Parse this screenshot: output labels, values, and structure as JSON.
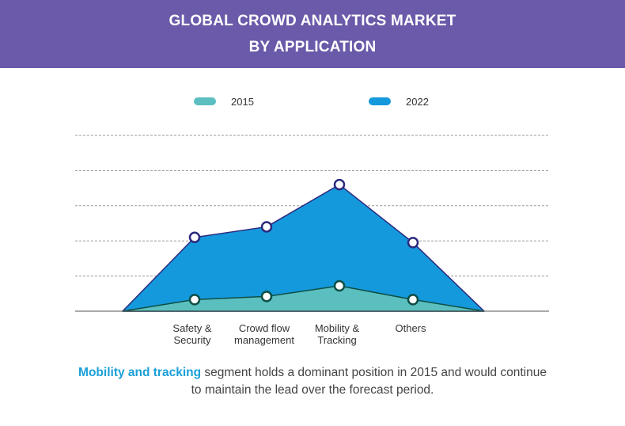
{
  "header": {
    "title_line1": "GLOBAL CROWD ANALYTICS MARKET",
    "title_line2": "BY APPLICATION"
  },
  "chart_data": {
    "type": "area",
    "categories": [
      [
        "Safety &",
        "Security"
      ],
      [
        "Crowd flow",
        "management"
      ],
      [
        "Mobility &",
        "Tracking"
      ],
      [
        "Others"
      ]
    ],
    "series": [
      {
        "name": "2022",
        "values": [
          2.1,
          2.4,
          3.6,
          1.95
        ],
        "color": "#1499dc",
        "marker_color": "#2c2a7e"
      },
      {
        "name": "2015",
        "values": [
          0.33,
          0.42,
          0.72,
          0.33
        ],
        "color": "#5bbfc0",
        "marker_color": "#0d4f45"
      }
    ],
    "ylim": [
      0,
      5
    ],
    "grid": true,
    "legend": "top",
    "xlabel": "",
    "ylabel": ""
  },
  "legend": [
    {
      "label": "2015",
      "color": "#5bbfc0"
    },
    {
      "label": "2022",
      "color": "#1499dc"
    }
  ],
  "note": {
    "highlight": "Mobility and tracking",
    "rest": " segment holds a dominant position in 2015 and would continue to maintain the lead over the forecast period."
  },
  "colors": {
    "header_bg": "#6a5aa9",
    "highlight": "#1aa0d8"
  }
}
